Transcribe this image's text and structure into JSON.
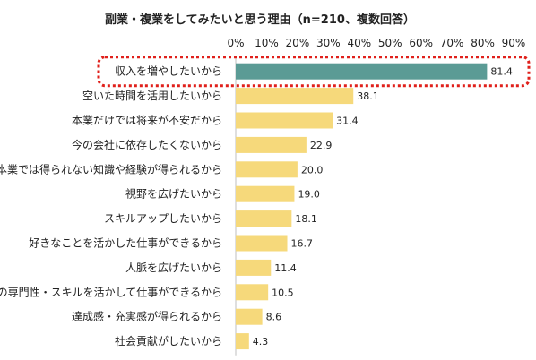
{
  "chart_data": {
    "type": "bar",
    "orientation": "horizontal",
    "title": "副業・複業をしてみたいと思う理由（n=210、複数回答）",
    "xlim": [
      0,
      90
    ],
    "x_ticks": [
      "0%",
      "10%",
      "20%",
      "30%",
      "40%",
      "50%",
      "60%",
      "70%",
      "80%",
      "90%"
    ],
    "grid": false,
    "categories": [
      "収入を増やしたいから",
      "空いた時間を活用したいから",
      "本業だけでは将来が不安だから",
      "今の会社に依存したくないから",
      "本業では得られない知識や経験が得られるから",
      "視野を広げたいから",
      "スキルアップしたいから",
      "好きなことを活かした仕事ができるから",
      "人脈を広げたいから",
      "自分の専門性・スキルを活かして仕事ができるから",
      "達成感・充実感が得られるから",
      "社会貢献がしたいから"
    ],
    "values": [
      81.4,
      38.1,
      31.4,
      22.9,
      20.0,
      19.0,
      18.1,
      16.7,
      11.4,
      10.5,
      8.6,
      4.3
    ],
    "value_labels": [
      "81.4",
      "38.1",
      "31.4",
      "22.9",
      "20.0",
      "19.0",
      "18.1",
      "16.7",
      "11.4",
      "10.5",
      "8.6",
      "4.3"
    ],
    "highlight_index": 0,
    "colors": {
      "highlight_bar": "#5b9b95",
      "bar": "#f6d97b",
      "highlight_outline": "#e0201b",
      "axis": "#bfbfbf"
    }
  }
}
